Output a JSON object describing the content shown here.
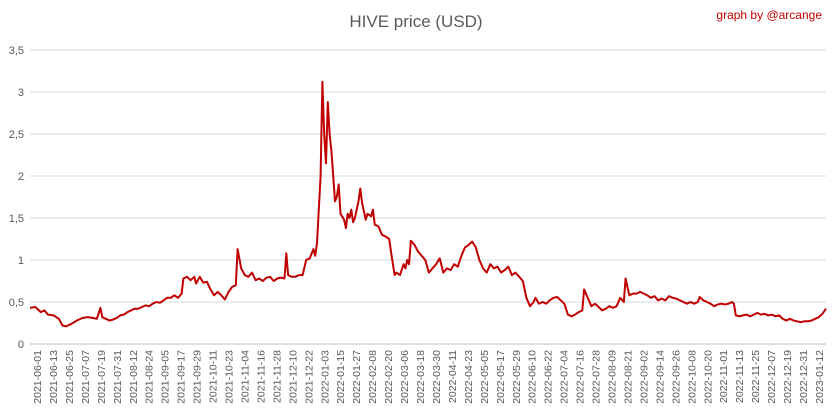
{
  "chart_data": {
    "type": "line",
    "title": "HIVE price (USD)",
    "credit": "graph by @arcange",
    "xlabel": "",
    "ylabel": "",
    "ylim": [
      0,
      3.5
    ],
    "grid": true,
    "line_color": "#c00000",
    "y_ticks": [
      "0",
      "0,5",
      "1",
      "1,5",
      "2",
      "2,5",
      "3",
      "3,5"
    ],
    "x_ticks": [
      "2021-06-01",
      "2021-06-13",
      "2021-06-25",
      "2021-07-07",
      "2021-07-19",
      "2021-07-31",
      "2021-08-12",
      "2021-08-24",
      "2021-09-05",
      "2021-09-17",
      "2021-09-29",
      "2021-10-11",
      "2021-10-23",
      "2021-11-04",
      "2021-11-16",
      "2021-11-28",
      "2021-12-10",
      "2021-12-22",
      "2022-01-03",
      "2022-01-15",
      "2022-01-27",
      "2022-02-08",
      "2022-02-20",
      "2022-03-06",
      "2022-03-18",
      "2022-03-30",
      "2022-04-11",
      "2022-04-23",
      "2022-05-05",
      "2022-05-17",
      "2022-05-29",
      "2022-06-10",
      "2022-06-22",
      "2022-07-04",
      "2022-07-16",
      "2022-07-28",
      "2022-08-09",
      "2022-08-21",
      "2022-09-02",
      "2022-09-14",
      "2022-09-26",
      "2022-10-08",
      "2022-10-20",
      "2022-11-01",
      "2022-11-13",
      "2022-11-25",
      "2022-12-07",
      "2022-12-19",
      "2022-12-31",
      "2023-01-12"
    ],
    "series": [
      {
        "values": [
          [
            0,
            0.43
          ],
          [
            3,
            0.44
          ],
          [
            6,
            0.38
          ],
          [
            8,
            0.4
          ],
          [
            10,
            0.35
          ],
          [
            13,
            0.34
          ],
          [
            16,
            0.3
          ],
          [
            18,
            0.22
          ],
          [
            20,
            0.21
          ],
          [
            23,
            0.24
          ],
          [
            26,
            0.28
          ],
          [
            29,
            0.31
          ],
          [
            32,
            0.32
          ],
          [
            35,
            0.31
          ],
          [
            37,
            0.3
          ],
          [
            39,
            0.43
          ],
          [
            40,
            0.32
          ],
          [
            42,
            0.3
          ],
          [
            44,
            0.28
          ],
          [
            46,
            0.29
          ],
          [
            48,
            0.31
          ],
          [
            50,
            0.34
          ],
          [
            52,
            0.35
          ],
          [
            54,
            0.38
          ],
          [
            56,
            0.4
          ],
          [
            58,
            0.42
          ],
          [
            60,
            0.42
          ],
          [
            62,
            0.44
          ],
          [
            64,
            0.46
          ],
          [
            66,
            0.45
          ],
          [
            68,
            0.48
          ],
          [
            70,
            0.5
          ],
          [
            72,
            0.49
          ],
          [
            74,
            0.52
          ],
          [
            76,
            0.55
          ],
          [
            78,
            0.55
          ],
          [
            80,
            0.58
          ],
          [
            82,
            0.55
          ],
          [
            84,
            0.6
          ],
          [
            85,
            0.78
          ],
          [
            87,
            0.8
          ],
          [
            89,
            0.76
          ],
          [
            91,
            0.8
          ],
          [
            92,
            0.72
          ],
          [
            94,
            0.8
          ],
          [
            96,
            0.73
          ],
          [
            98,
            0.74
          ],
          [
            100,
            0.65
          ],
          [
            102,
            0.58
          ],
          [
            104,
            0.62
          ],
          [
            106,
            0.58
          ],
          [
            108,
            0.53
          ],
          [
            110,
            0.62
          ],
          [
            112,
            0.68
          ],
          [
            114,
            0.7
          ],
          [
            115,
            1.13
          ],
          [
            117,
            0.9
          ],
          [
            119,
            0.82
          ],
          [
            121,
            0.8
          ],
          [
            123,
            0.85
          ],
          [
            125,
            0.76
          ],
          [
            127,
            0.78
          ],
          [
            129,
            0.75
          ],
          [
            131,
            0.79
          ],
          [
            133,
            0.8
          ],
          [
            135,
            0.75
          ],
          [
            137,
            0.78
          ],
          [
            139,
            0.79
          ],
          [
            141,
            0.78
          ],
          [
            142,
            1.08
          ],
          [
            143,
            0.82
          ],
          [
            145,
            0.8
          ],
          [
            147,
            0.8
          ],
          [
            149,
            0.82
          ],
          [
            151,
            0.82
          ],
          [
            153,
            1.0
          ],
          [
            155,
            1.02
          ],
          [
            157,
            1.13
          ],
          [
            158,
            1.05
          ],
          [
            159,
            1.2
          ],
          [
            160,
            1.6
          ],
          [
            161,
            2.0
          ],
          [
            162,
            3.12
          ],
          [
            163,
            2.5
          ],
          [
            164,
            2.15
          ],
          [
            165,
            2.88
          ],
          [
            166,
            2.5
          ],
          [
            167,
            2.3
          ],
          [
            168,
            2.0
          ],
          [
            169,
            1.7
          ],
          [
            170,
            1.75
          ],
          [
            171,
            1.9
          ],
          [
            172,
            1.55
          ],
          [
            174,
            1.48
          ],
          [
            175,
            1.38
          ],
          [
            176,
            1.55
          ],
          [
            177,
            1.5
          ],
          [
            178,
            1.6
          ],
          [
            179,
            1.45
          ],
          [
            180,
            1.5
          ],
          [
            182,
            1.7
          ],
          [
            183,
            1.85
          ],
          [
            184,
            1.68
          ],
          [
            185,
            1.58
          ],
          [
            186,
            1.48
          ],
          [
            187,
            1.55
          ],
          [
            189,
            1.52
          ],
          [
            190,
            1.6
          ],
          [
            191,
            1.42
          ],
          [
            193,
            1.4
          ],
          [
            195,
            1.3
          ],
          [
            197,
            1.28
          ],
          [
            199,
            1.25
          ],
          [
            200,
            1.1
          ],
          [
            201,
            0.96
          ],
          [
            202,
            0.82
          ],
          [
            203,
            0.85
          ],
          [
            205,
            0.82
          ],
          [
            207,
            0.95
          ],
          [
            208,
            0.9
          ],
          [
            209,
            1.0
          ],
          [
            210,
            0.95
          ],
          [
            211,
            1.23
          ],
          [
            213,
            1.18
          ],
          [
            215,
            1.1
          ],
          [
            217,
            1.05
          ],
          [
            219,
            1.0
          ],
          [
            221,
            0.85
          ],
          [
            223,
            0.9
          ],
          [
            225,
            0.95
          ],
          [
            227,
            1.02
          ],
          [
            229,
            0.85
          ],
          [
            231,
            0.9
          ],
          [
            233,
            0.88
          ],
          [
            235,
            0.95
          ],
          [
            237,
            0.92
          ],
          [
            239,
            1.05
          ],
          [
            241,
            1.15
          ],
          [
            243,
            1.18
          ],
          [
            245,
            1.22
          ],
          [
            247,
            1.15
          ],
          [
            249,
            1.0
          ],
          [
            251,
            0.9
          ],
          [
            253,
            0.85
          ],
          [
            255,
            0.95
          ],
          [
            257,
            0.9
          ],
          [
            259,
            0.92
          ],
          [
            261,
            0.85
          ],
          [
            263,
            0.88
          ],
          [
            265,
            0.92
          ],
          [
            267,
            0.82
          ],
          [
            269,
            0.85
          ],
          [
            271,
            0.8
          ],
          [
            273,
            0.75
          ],
          [
            275,
            0.55
          ],
          [
            277,
            0.45
          ],
          [
            279,
            0.5
          ],
          [
            280,
            0.55
          ],
          [
            282,
            0.48
          ],
          [
            284,
            0.5
          ],
          [
            286,
            0.48
          ],
          [
            288,
            0.52
          ],
          [
            290,
            0.55
          ],
          [
            292,
            0.56
          ],
          [
            294,
            0.52
          ],
          [
            296,
            0.48
          ],
          [
            298,
            0.35
          ],
          [
            300,
            0.33
          ],
          [
            302,
            0.35
          ],
          [
            304,
            0.38
          ],
          [
            306,
            0.4
          ],
          [
            307,
            0.65
          ],
          [
            309,
            0.55
          ],
          [
            311,
            0.45
          ],
          [
            313,
            0.48
          ],
          [
            315,
            0.44
          ],
          [
            317,
            0.4
          ],
          [
            319,
            0.42
          ],
          [
            321,
            0.45
          ],
          [
            323,
            0.43
          ],
          [
            325,
            0.45
          ],
          [
            327,
            0.55
          ],
          [
            329,
            0.5
          ],
          [
            330,
            0.78
          ],
          [
            332,
            0.58
          ],
          [
            334,
            0.6
          ],
          [
            336,
            0.6
          ],
          [
            338,
            0.62
          ],
          [
            340,
            0.6
          ],
          [
            342,
            0.58
          ],
          [
            344,
            0.55
          ],
          [
            346,
            0.57
          ],
          [
            348,
            0.52
          ],
          [
            350,
            0.54
          ],
          [
            352,
            0.52
          ],
          [
            354,
            0.57
          ],
          [
            356,
            0.55
          ],
          [
            358,
            0.54
          ],
          [
            360,
            0.52
          ],
          [
            362,
            0.5
          ],
          [
            364,
            0.48
          ],
          [
            366,
            0.5
          ],
          [
            368,
            0.48
          ],
          [
            370,
            0.5
          ],
          [
            371,
            0.56
          ],
          [
            373,
            0.52
          ],
          [
            375,
            0.5
          ],
          [
            377,
            0.48
          ],
          [
            379,
            0.45
          ],
          [
            381,
            0.47
          ],
          [
            383,
            0.48
          ],
          [
            385,
            0.47
          ],
          [
            387,
            0.48
          ],
          [
            389,
            0.5
          ],
          [
            390,
            0.48
          ],
          [
            391,
            0.34
          ],
          [
            393,
            0.33
          ],
          [
            395,
            0.34
          ],
          [
            397,
            0.35
          ],
          [
            399,
            0.33
          ],
          [
            401,
            0.35
          ],
          [
            403,
            0.37
          ],
          [
            405,
            0.35
          ],
          [
            407,
            0.36
          ],
          [
            409,
            0.34
          ],
          [
            411,
            0.35
          ],
          [
            413,
            0.33
          ],
          [
            415,
            0.34
          ],
          [
            417,
            0.3
          ],
          [
            419,
            0.28
          ],
          [
            421,
            0.3
          ],
          [
            423,
            0.28
          ],
          [
            425,
            0.27
          ],
          [
            427,
            0.26
          ],
          [
            429,
            0.27
          ],
          [
            431,
            0.27
          ],
          [
            433,
            0.28
          ],
          [
            435,
            0.3
          ],
          [
            437,
            0.32
          ],
          [
            439,
            0.36
          ],
          [
            441,
            0.42
          ]
        ]
      }
    ]
  }
}
